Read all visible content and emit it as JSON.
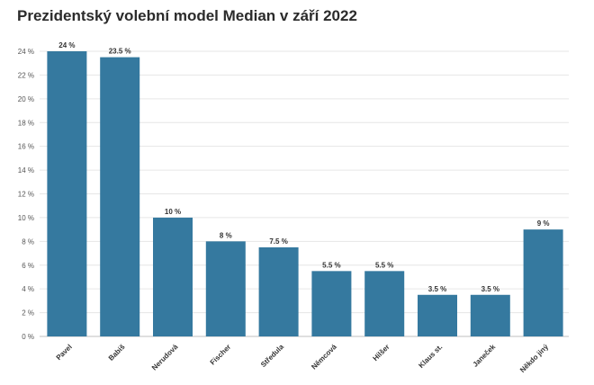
{
  "chart_data": {
    "type": "bar",
    "title": "Prezidentský volební model Median v září 2022",
    "categories": [
      "Pavel",
      "Babiš",
      "Nerudová",
      "Fischer",
      "Středula",
      "Němcová",
      "Hilšer",
      "Klaus st.",
      "Janeček",
      "Někdo jiný"
    ],
    "values": [
      24,
      23.5,
      10,
      8,
      7.5,
      5.5,
      5.5,
      3.5,
      3.5,
      9
    ],
    "value_labels": [
      "24 %",
      "23.5 %",
      "10 %",
      "8 %",
      "7.5 %",
      "5.5 %",
      "5.5 %",
      "3.5 %",
      "3.5 %",
      "9 %"
    ],
    "ylim": [
      0,
      24
    ],
    "yticks": [
      0,
      2,
      4,
      6,
      8,
      10,
      12,
      14,
      16,
      18,
      20,
      22,
      24
    ],
    "ytick_labels": [
      "0 %",
      "2 %",
      "4 %",
      "6 %",
      "8 %",
      "10 %",
      "12 %",
      "14 %",
      "16 %",
      "18 %",
      "20 %",
      "22 %",
      "24 %"
    ],
    "xlabel": "",
    "ylabel": "",
    "grid": true,
    "bar_color": "#35799f"
  }
}
